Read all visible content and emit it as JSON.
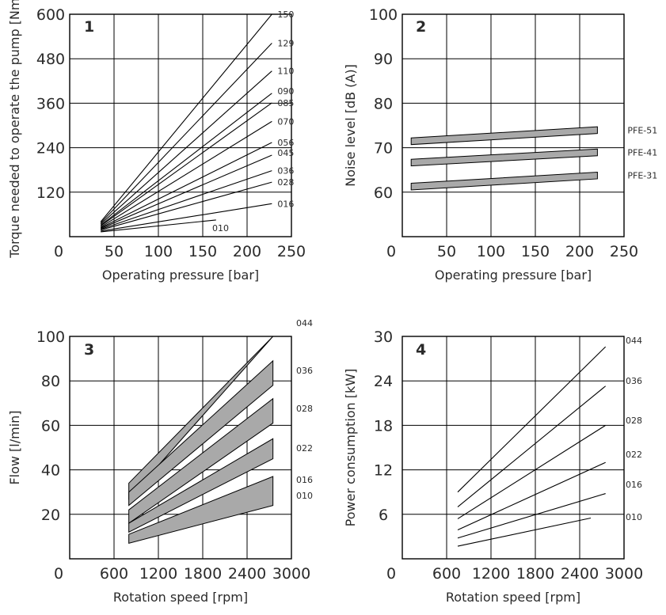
{
  "chart_data": [
    {
      "type": "line",
      "number": "1",
      "xlabel": "Operating pressure [bar]",
      "ylabel": "Torque needed to operate the pump [Nm]",
      "xlim": [
        0,
        250
      ],
      "ylim": [
        0,
        600
      ],
      "xticks": [
        "0",
        "50",
        "100",
        "150",
        "200",
        "250"
      ],
      "yticks": [
        "120",
        "240",
        "360",
        "480",
        "600"
      ],
      "series": [
        {
          "name": "150",
          "x": [
            35,
            228
          ],
          "y": [
            40,
            600
          ]
        },
        {
          "name": "129",
          "x": [
            35,
            228
          ],
          "y": [
            37,
            522
          ]
        },
        {
          "name": "110",
          "x": [
            35,
            228
          ],
          "y": [
            34,
            447
          ]
        },
        {
          "name": "090",
          "x": [
            35,
            228
          ],
          "y": [
            31,
            387
          ]
        },
        {
          "name": "085",
          "x": [
            35,
            228
          ],
          "y": [
            29,
            361
          ]
        },
        {
          "name": "070",
          "x": [
            35,
            228
          ],
          "y": [
            26,
            311
          ]
        },
        {
          "name": "056",
          "x": [
            35,
            228
          ],
          "y": [
            24,
            254
          ]
        },
        {
          "name": "045",
          "x": [
            35,
            228
          ],
          "y": [
            22,
            220
          ]
        },
        {
          "name": "036",
          "x": [
            35,
            228
          ],
          "y": [
            20,
            178
          ]
        },
        {
          "name": "028",
          "x": [
            35,
            228
          ],
          "y": [
            18,
            147
          ]
        },
        {
          "name": "016",
          "x": [
            35,
            228
          ],
          "y": [
            15,
            89
          ]
        },
        {
          "name": "010",
          "x": [
            35,
            165
          ],
          "y": [
            13,
            45
          ]
        }
      ]
    },
    {
      "type": "area",
      "number": "2",
      "xlabel": "Operating pressure [bar]",
      "ylabel": "Noise level [dB (A)]",
      "xlim": [
        0,
        250
      ],
      "ylim": [
        50,
        100
      ],
      "xticks": [
        "0",
        "50",
        "100",
        "150",
        "200",
        "250"
      ],
      "yticks": [
        "60",
        "70",
        "80",
        "90",
        "100"
      ],
      "series": [
        {
          "name": "PFE-51",
          "x": [
            10,
            220
          ],
          "low": [
            70.7,
            73.2
          ],
          "high": [
            72.2,
            74.7
          ]
        },
        {
          "name": "PFE-41",
          "x": [
            10,
            220
          ],
          "low": [
            65.9,
            68.2
          ],
          "high": [
            67.4,
            69.7
          ]
        },
        {
          "name": "PFE-31",
          "x": [
            10,
            220
          ],
          "low": [
            60.5,
            63.0
          ],
          "high": [
            62.0,
            64.5
          ]
        }
      ]
    },
    {
      "type": "area",
      "number": "3",
      "xlabel": "Rotation speed [rpm]",
      "ylabel": "Flow [l/min]",
      "xlim": [
        0,
        3000
      ],
      "ylim": [
        0,
        100
      ],
      "xticks": [
        "0",
        "600",
        "1200",
        "1800",
        "2400",
        "3000"
      ],
      "yticks": [
        "20",
        "40",
        "60",
        "80",
        "100"
      ],
      "series": [
        {
          "name": "044",
          "x": [
            800,
            2750
          ],
          "low": [
            27,
            100
          ],
          "high": [
            34,
            100
          ]
        },
        {
          "name": "036",
          "x": [
            800,
            2750
          ],
          "low": [
            24,
            78
          ],
          "high": [
            30,
            89
          ]
        },
        {
          "name": "028",
          "x": [
            800,
            2750
          ],
          "low": [
            16,
            61
          ],
          "high": [
            22,
            72
          ]
        },
        {
          "name": "022",
          "x": [
            800,
            2750
          ],
          "low": [
            12,
            45
          ],
          "high": [
            16,
            54
          ]
        },
        {
          "name": "016",
          "x": [
            800,
            2750
          ],
          "low": [
            7,
            24
          ],
          "high": [
            11,
            37
          ]
        }
      ],
      "labels_only": [
        "010"
      ]
    },
    {
      "type": "line",
      "number": "4",
      "xlabel": "Rotation speed [rpm]",
      "ylabel": "Power consumption [kW]",
      "xlim": [
        0,
        3000
      ],
      "ylim": [
        0,
        30
      ],
      "xticks": [
        "0",
        "600",
        "1200",
        "1800",
        "2400",
        "3000"
      ],
      "yticks": [
        "6",
        "12",
        "18",
        "24",
        "30"
      ],
      "series": [
        {
          "name": "044",
          "x": [
            750,
            2750
          ],
          "y": [
            9.0,
            28.6
          ]
        },
        {
          "name": "036",
          "x": [
            750,
            2750
          ],
          "y": [
            7.0,
            23.3
          ]
        },
        {
          "name": "028",
          "x": [
            750,
            2750
          ],
          "y": [
            5.4,
            18.0
          ]
        },
        {
          "name": "022",
          "x": [
            750,
            2750
          ],
          "y": [
            3.9,
            13.0
          ]
        },
        {
          "name": "016",
          "x": [
            750,
            2750
          ],
          "y": [
            2.8,
            8.8
          ]
        },
        {
          "name": "010",
          "x": [
            750,
            2550
          ],
          "y": [
            1.7,
            5.5
          ]
        }
      ]
    }
  ]
}
